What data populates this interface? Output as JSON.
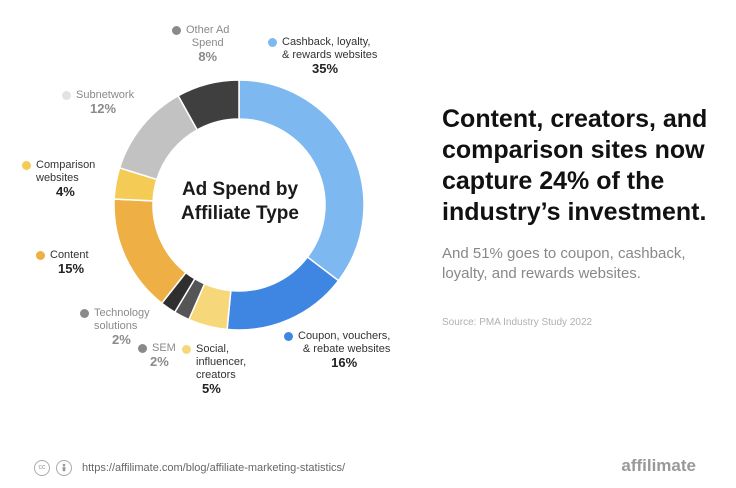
{
  "chart_data": {
    "type": "pie",
    "center_title": [
      "Ad Spend by",
      "Affiliate Type"
    ],
    "slices": [
      {
        "label": [
          "Cashback, loyalty,",
          "& rewards websites"
        ],
        "value": 35,
        "display": "35%",
        "color": "#7db8f0"
      },
      {
        "label": [
          "Coupon, vouchers,",
          "& rebate websites"
        ],
        "value": 16,
        "display": "16%",
        "color": "#3f86e3"
      },
      {
        "label": [
          "Social,",
          "influencer,",
          "creators"
        ],
        "value": 5,
        "display": "5%",
        "color": "#f6d77a"
      },
      {
        "label": [
          "SEM"
        ],
        "value": 2,
        "display": "2%",
        "color": "#555555"
      },
      {
        "label": [
          "Technology",
          "solutions"
        ],
        "value": 2,
        "display": "2%",
        "color": "#2f2f2f"
      },
      {
        "label": [
          "Content"
        ],
        "value": 15,
        "display": "15%",
        "color": "#eeb044"
      },
      {
        "label": [
          "Comparison",
          "websites"
        ],
        "value": 4,
        "display": "4%",
        "color": "#f4cc55"
      },
      {
        "label": [
          "Subnetwork"
        ],
        "value": 12,
        "display": "12%",
        "color": "#c2c2c2"
      },
      {
        "label": [
          "Other Ad",
          "Spend"
        ],
        "value": 8,
        "display": "8%",
        "color": "#3f3f3f"
      }
    ]
  },
  "headline": "Content, creators, and comparison sites now capture 24% of the industry’s investment.",
  "subtext": "And 51% goes to coupon, cashback, loyalty, and rewards websites.",
  "source": "Source: PMA Industry Study 2022",
  "footer": {
    "url": "https://affilimate.com/blog/affiliate-marketing-statistics/",
    "brand": "affilimate",
    "icons": [
      "cc-icon",
      "attribution-icon"
    ]
  }
}
